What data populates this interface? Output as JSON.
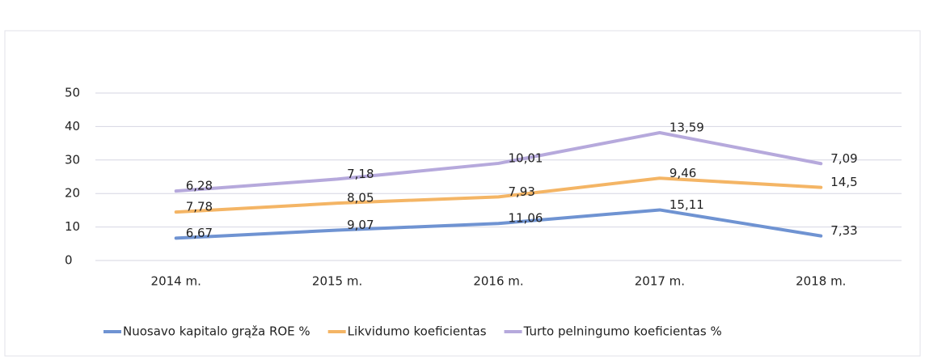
{
  "chart_data": {
    "type": "line",
    "stacked": true,
    "categories": [
      "2014 m.",
      "2015 m.",
      "2016 m.",
      "2017 m.",
      "2018 m."
    ],
    "series": [
      {
        "name": "Nuosavo kapitalo grąža ROE %",
        "color": "#6f93d2",
        "values": [
          6.67,
          9.07,
          11.06,
          15.11,
          7.33
        ],
        "value_labels": [
          "6,67",
          "9,07",
          "11,06",
          "15,11",
          "7,33"
        ]
      },
      {
        "name": "Likvidumo koeficientas",
        "color": "#f4b565",
        "values": [
          7.78,
          8.05,
          7.93,
          9.46,
          14.5
        ],
        "value_labels": [
          "7,78",
          "8,05",
          "7,93",
          "9,46",
          "14,5"
        ]
      },
      {
        "name": "Turto pelningumo koeficientas %",
        "color": "#b6a9dc",
        "values": [
          6.28,
          7.18,
          10.01,
          13.59,
          7.09
        ],
        "value_labels": [
          "6,28",
          "7,18",
          "10,01",
          "13,59",
          "7,09"
        ]
      }
    ],
    "ylim": [
      0,
      50
    ],
    "yticks": [
      0,
      10,
      20,
      30,
      40,
      50
    ],
    "grid": true,
    "legend": "bottom"
  }
}
